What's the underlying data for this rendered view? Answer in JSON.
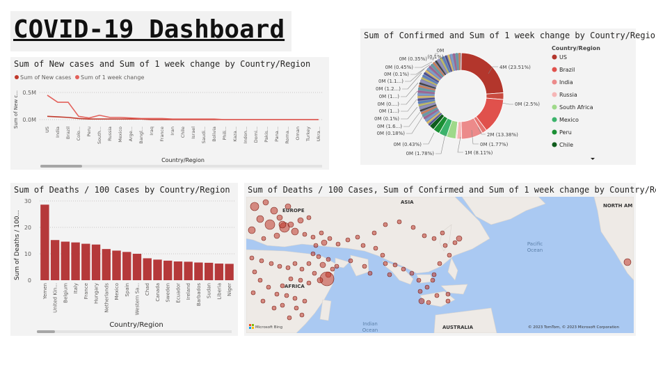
{
  "dashboard": {
    "title": "COVID-19 Dashboard"
  },
  "colors": {
    "primary": "#c0392b",
    "secondary": "#e3615b",
    "map_land": "#eeeae6",
    "map_water": "#aac9f2"
  },
  "line_card": {
    "title": "Sum of New cases and Sum of 1 week change by Country/Region",
    "legend": [
      "Sum of New cases",
      "Sum of 1 week change"
    ],
    "y_axis_label": "Sum of New c...",
    "x_axis_label": "Country/Region",
    "y_ticks": [
      "0.5M",
      "0.0M"
    ]
  },
  "donut_card": {
    "title": "Sum of Confirmed and Sum of 1 week change by Country/Region",
    "legend_title": "Country/Region",
    "legend_items": [
      "US",
      "Brazil",
      "India",
      "Russia",
      "South Africa",
      "Mexico",
      "Peru",
      "Chile"
    ],
    "legend_colors": [
      "#b3362c",
      "#e0514c",
      "#ec8a8a",
      "#f6b6b6",
      "#9fd98a",
      "#3bb36b",
      "#1a8f33",
      "#0f5c1d"
    ],
    "labels": {
      "us": "4M (23.51%)",
      "r1": "0M (2.5%)",
      "r2": "2M (13.38%)",
      "r3": "0M (1.77%)",
      "r4": "1M (8.11%)",
      "r5": "0M (1.78%)",
      "r6": "0M (0.43%)",
      "t1": "0M",
      "t2": "(0.1%)",
      "l1": "0M (0.35%)",
      "l2": "0M (0.45%)",
      "l3": "0M (0.1%)",
      "l4": "0M (1.1...)",
      "l5": "0M (1.2...)",
      "l6": "0M (1...)",
      "l7": "0M (0....)",
      "l8": "0M (1...)",
      "l9": "0M (0.1%)",
      "l10": "0M (1.6...)",
      "l11": "0M (0.18%)"
    }
  },
  "bar_card": {
    "title": "Sum of Deaths / 100 Cases by Country/Region",
    "y_axis_label": "Sum of Deaths / 100...",
    "x_axis_label": "Country/Region",
    "y_ticks": [
      "30",
      "20",
      "10",
      "0"
    ]
  },
  "map_card": {
    "title": "Sum of Deaths / 100 Cases, Sum of Confirmed and Sum of 1 week change by Country/Region",
    "labels": {
      "asia": "ASIA",
      "europe": "EUROPE",
      "africa": "AFRICA",
      "australia": "AUSTRALIA",
      "north_america": "NORTH AM",
      "pacific": "Pacific",
      "pacific2": "Ocean",
      "indian": "Indian",
      "indian2": "Ocean"
    },
    "bing": "Microsoft Bing",
    "copyright": "© 2023 TomTom, © 2023 Microsoft Corporation"
  },
  "chart_data": [
    {
      "type": "line",
      "title": "Sum of New cases and Sum of 1 week change by Country/Region",
      "xlabel": "Country/Region",
      "ylabel": "Sum of New c...",
      "categories": [
        "US",
        "India",
        "Brazil",
        "Colo...",
        "Peru",
        "South...",
        "Russia",
        "Mexico",
        "Arge...",
        "Bangl...",
        "Iraq",
        "France",
        "Iran",
        "Chile",
        "Israel",
        "Saudi...",
        "Bolivia",
        "Phili...",
        "Kaza...",
        "Indon...",
        "Domi...",
        "Pakis...",
        "Pana...",
        "Roma...",
        "Oman",
        "Turkey",
        "Ukra..."
      ],
      "ylim": [
        -0.05,
        0.7
      ],
      "series": [
        {
          "name": "Sum of New cases",
          "values": [
            0.06,
            0.05,
            0.04,
            0.02,
            0.01,
            0.01,
            0.01,
            0.01,
            0.01,
            0.01,
            0.0,
            0.0,
            0.0,
            0.0,
            0.0,
            0.0,
            0.0,
            0.0,
            0.0,
            0.0,
            0.0,
            0.0,
            0.0,
            0.0,
            0.0,
            0.0,
            0.0
          ]
        },
        {
          "name": "Sum of 1 week change",
          "values": [
            0.45,
            0.32,
            0.32,
            0.06,
            0.03,
            0.08,
            0.04,
            0.04,
            0.03,
            0.02,
            0.02,
            0.02,
            0.01,
            0.01,
            0.01,
            0.01,
            0.01,
            0.0,
            0.0,
            0.0,
            0.0,
            0.0,
            0.0,
            0.0,
            0.0,
            0.0,
            0.0
          ]
        }
      ]
    },
    {
      "type": "pie",
      "title": "Sum of Confirmed and Sum of 1 week change by Country/Region",
      "labels": [
        "US",
        "",
        "Brazil",
        "",
        "India",
        "Russia",
        "",
        "South Africa",
        "Mexico",
        "Peru",
        "Chile",
        "others"
      ],
      "values": [
        23.51,
        2.5,
        13.38,
        1.77,
        8.11,
        1.78,
        0.43,
        3.5,
        3.0,
        2.5,
        2.0,
        37.52
      ],
      "colors": [
        "#b3362c",
        "#c94a3f",
        "#e0514c",
        "#e67470",
        "#ec8a8a",
        "#f6b6b6",
        "#f9c9c9",
        "#9fd98a",
        "#3bb36b",
        "#1a8f33",
        "#0f5c1d",
        "#8a8aa8"
      ]
    },
    {
      "type": "bar",
      "title": "Sum of Deaths / 100 Cases by Country/Region",
      "xlabel": "Country/Region",
      "ylabel": "Sum of Deaths / 100...",
      "categories": [
        "Yemen",
        "United Kin...",
        "Belgium",
        "Italy",
        "France",
        "Hungary",
        "Netherlands",
        "Mexico",
        "Spain",
        "Western Sa...",
        "Chad",
        "Canada",
        "Sweden",
        "Ecuador",
        "Ireland",
        "Barbados",
        "Sudan",
        "Liberia",
        "Niger"
      ],
      "values": [
        28.6,
        15.2,
        14.6,
        14.3,
        13.8,
        13.5,
        11.8,
        11.2,
        10.7,
        10.0,
        8.3,
        7.8,
        7.4,
        7.1,
        7.0,
        6.7,
        6.6,
        6.3,
        6.2
      ],
      "ylim": [
        0,
        30
      ]
    }
  ]
}
